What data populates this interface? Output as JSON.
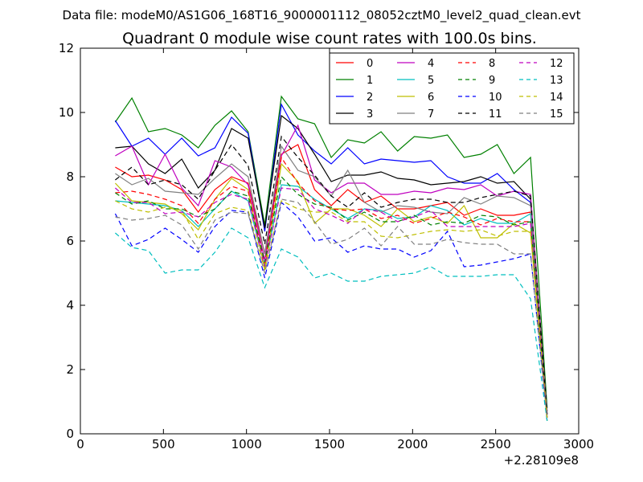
{
  "figure": {
    "suptitle": "Data file: modeM0/AS1G06_168T16_9000001112_08052cztM0_level2_quad_clean.evt"
  },
  "chart_data": {
    "type": "line",
    "title": "Quadrant 0 module wise count rates with 100.0s bins.",
    "xlabel": "",
    "ylabel": "",
    "xlim": [
      0,
      3000
    ],
    "ylim": [
      0,
      12
    ],
    "x_ticks": [
      0,
      500,
      1000,
      1500,
      2000,
      2500,
      3000
    ],
    "y_ticks": [
      0,
      2,
      4,
      6,
      8,
      10,
      12
    ],
    "x_offset_label": "+2.28109e8",
    "grid": false,
    "legend_position": "top-right",
    "legend_columns": 4,
    "x": [
      210,
      310,
      410,
      510,
      610,
      710,
      810,
      910,
      1010,
      1110,
      1210,
      1310,
      1410,
      1510,
      1610,
      1710,
      1810,
      1910,
      2010,
      2110,
      2210,
      2310,
      2410,
      2510,
      2610,
      2710,
      2810
    ],
    "series": [
      {
        "name": "0",
        "color": "#ff0000",
        "dash": "solid",
        "values": [
          8.3,
          8.0,
          8.05,
          7.9,
          7.6,
          6.9,
          7.6,
          8.0,
          7.8,
          5.6,
          8.7,
          9.0,
          7.6,
          7.1,
          7.6,
          7.2,
          7.4,
          7.0,
          7.0,
          7.1,
          7.2,
          6.8,
          7.0,
          6.8,
          6.8,
          6.9,
          0.6
        ]
      },
      {
        "name": "1",
        "color": "#008000",
        "dash": "solid",
        "values": [
          9.7,
          10.45,
          9.4,
          9.5,
          9.3,
          8.9,
          9.6,
          10.05,
          9.4,
          6.5,
          10.5,
          9.8,
          9.65,
          8.6,
          9.15,
          9.05,
          9.4,
          8.8,
          9.25,
          9.2,
          9.3,
          8.6,
          8.7,
          9.0,
          8.1,
          8.6,
          0.8
        ]
      },
      {
        "name": "2",
        "color": "#0000ff",
        "dash": "solid",
        "values": [
          9.75,
          8.95,
          9.2,
          8.7,
          9.2,
          8.65,
          8.9,
          9.85,
          9.35,
          6.3,
          10.25,
          9.3,
          8.8,
          8.4,
          8.9,
          8.4,
          8.55,
          8.5,
          8.45,
          8.5,
          8.0,
          7.8,
          7.8,
          8.1,
          7.6,
          7.2,
          0.5
        ]
      },
      {
        "name": "3",
        "color": "#000000",
        "dash": "solid",
        "values": [
          8.9,
          8.95,
          8.4,
          8.1,
          8.55,
          7.65,
          8.2,
          9.5,
          9.2,
          6.4,
          9.9,
          9.5,
          8.7,
          7.85,
          8.05,
          8.05,
          8.15,
          7.95,
          7.9,
          7.75,
          7.8,
          7.85,
          8.0,
          7.8,
          7.85,
          7.3,
          0.7
        ]
      },
      {
        "name": "4",
        "color": "#bf00bf",
        "dash": "solid",
        "values": [
          8.65,
          8.95,
          7.75,
          8.7,
          7.65,
          7.1,
          8.5,
          8.3,
          7.75,
          5.4,
          8.65,
          9.6,
          7.9,
          7.5,
          7.8,
          7.8,
          7.45,
          7.45,
          7.55,
          7.5,
          7.65,
          7.6,
          7.75,
          7.4,
          7.55,
          7.45,
          0.6
        ]
      },
      {
        "name": "5",
        "color": "#00bfbf",
        "dash": "solid",
        "values": [
          7.25,
          7.2,
          7.15,
          7.1,
          6.95,
          6.45,
          7.0,
          7.55,
          7.25,
          5.2,
          7.75,
          7.7,
          7.3,
          7.0,
          6.7,
          7.0,
          6.95,
          6.7,
          6.75,
          7.1,
          6.95,
          6.5,
          6.7,
          6.55,
          6.55,
          6.85,
          0.5
        ]
      },
      {
        "name": "6",
        "color": "#bfbf00",
        "dash": "solid",
        "values": [
          7.8,
          7.25,
          7.2,
          7.15,
          6.85,
          6.35,
          7.3,
          7.95,
          7.6,
          5.1,
          8.4,
          7.85,
          6.55,
          7.0,
          7.0,
          6.8,
          6.45,
          7.0,
          6.6,
          6.75,
          6.55,
          7.1,
          6.1,
          6.1,
          6.55,
          6.25,
          0.4
        ]
      },
      {
        "name": "7",
        "color": "#808080",
        "dash": "solid",
        "values": [
          8.1,
          7.75,
          7.95,
          7.55,
          7.5,
          7.45,
          7.95,
          8.4,
          8.0,
          5.6,
          8.95,
          8.2,
          8.0,
          7.4,
          8.2,
          7.2,
          6.9,
          7.1,
          7.05,
          6.9,
          6.85,
          7.35,
          7.15,
          7.4,
          7.35,
          7.1,
          0.6
        ]
      },
      {
        "name": "8",
        "color": "#ff0000",
        "dash": "dashed",
        "values": [
          7.5,
          7.55,
          7.45,
          7.3,
          7.1,
          6.55,
          7.3,
          7.7,
          7.55,
          5.3,
          8.6,
          7.8,
          7.25,
          7.0,
          6.95,
          7.0,
          6.7,
          6.8,
          6.55,
          6.7,
          6.9,
          6.75,
          6.5,
          6.7,
          6.6,
          6.6,
          0.5
        ]
      },
      {
        "name": "9",
        "color": "#008000",
        "dash": "dashed",
        "values": [
          7.5,
          7.15,
          7.25,
          7.0,
          7.0,
          6.75,
          7.0,
          7.55,
          7.4,
          5.35,
          8.0,
          7.45,
          7.15,
          7.05,
          6.65,
          6.9,
          6.6,
          6.6,
          6.8,
          6.5,
          6.6,
          6.55,
          6.8,
          6.75,
          6.5,
          6.6,
          0.5
        ]
      },
      {
        "name": "10",
        "color": "#0000ff",
        "dash": "dashed",
        "values": [
          6.85,
          5.85,
          6.05,
          6.4,
          6.05,
          5.65,
          6.45,
          6.95,
          6.9,
          4.85,
          7.2,
          6.75,
          6.0,
          6.1,
          5.65,
          5.85,
          5.75,
          5.75,
          5.5,
          5.7,
          6.3,
          5.2,
          5.25,
          5.35,
          5.45,
          5.6,
          0.4
        ]
      },
      {
        "name": "11",
        "color": "#000000",
        "dash": "dashed",
        "values": [
          7.9,
          8.3,
          7.75,
          7.9,
          7.75,
          7.3,
          8.2,
          9.0,
          8.35,
          5.9,
          9.25,
          8.6,
          8.05,
          7.4,
          7.05,
          7.5,
          7.05,
          7.2,
          7.3,
          7.3,
          7.2,
          7.2,
          7.35,
          7.45,
          7.55,
          7.4,
          0.6
        ]
      },
      {
        "name": "12",
        "color": "#bf00bf",
        "dash": "dashed",
        "values": [
          7.65,
          7.2,
          7.2,
          6.85,
          6.9,
          6.75,
          7.2,
          7.45,
          7.3,
          5.2,
          7.65,
          7.6,
          7.0,
          6.8,
          6.55,
          7.0,
          6.9,
          6.6,
          6.75,
          6.95,
          6.45,
          6.45,
          6.45,
          6.45,
          6.45,
          6.55,
          0.5
        ]
      },
      {
        "name": "13",
        "color": "#00bfbf",
        "dash": "dashed",
        "values": [
          6.25,
          5.8,
          5.7,
          5.0,
          5.1,
          5.1,
          5.65,
          6.4,
          6.1,
          4.55,
          5.75,
          5.5,
          4.85,
          5.0,
          4.75,
          4.75,
          4.9,
          4.95,
          5.0,
          5.2,
          4.9,
          4.9,
          4.9,
          4.95,
          4.95,
          4.2,
          0.4
        ]
      },
      {
        "name": "14",
        "color": "#bfbf00",
        "dash": "dashed",
        "values": [
          7.25,
          7.0,
          6.9,
          7.05,
          6.95,
          6.05,
          6.85,
          7.05,
          6.95,
          5.1,
          7.25,
          7.0,
          6.9,
          6.9,
          6.6,
          6.6,
          6.15,
          6.1,
          6.2,
          6.3,
          6.35,
          6.3,
          6.35,
          6.15,
          6.3,
          6.3,
          0.5
        ]
      },
      {
        "name": "15",
        "color": "#808080",
        "dash": "dashed",
        "values": [
          6.75,
          6.65,
          6.7,
          6.8,
          6.5,
          5.75,
          6.65,
          6.9,
          6.85,
          5.0,
          7.3,
          7.2,
          6.6,
          5.9,
          6.05,
          6.4,
          5.85,
          6.45,
          5.9,
          5.9,
          6.05,
          5.95,
          5.9,
          5.9,
          5.6,
          5.6,
          0.5
        ]
      }
    ]
  }
}
